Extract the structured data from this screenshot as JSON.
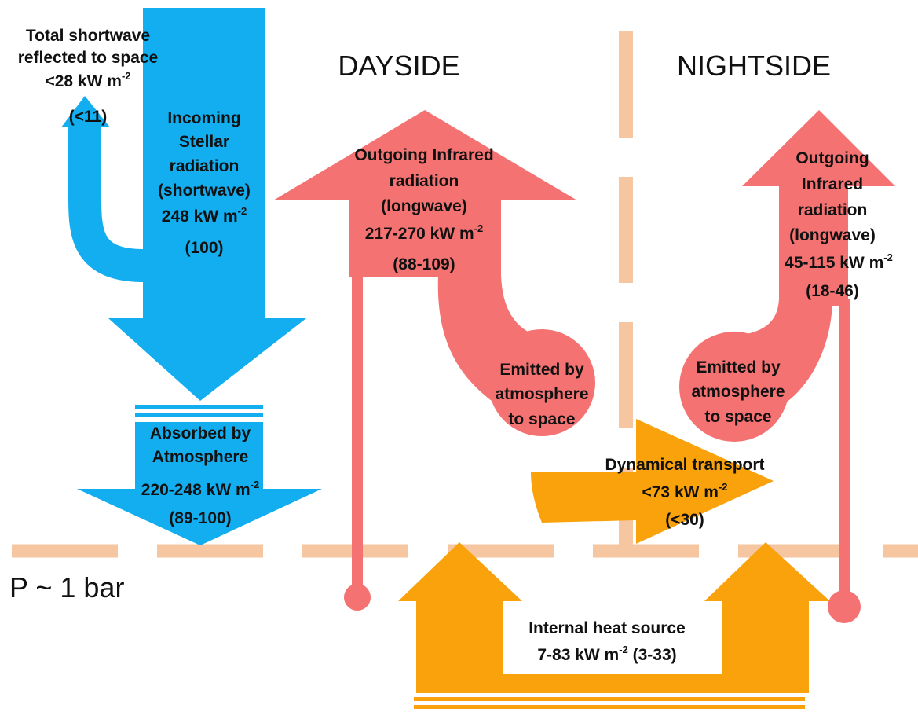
{
  "headers": {
    "dayside": "DAYSIDE",
    "nightside": "NIGHTSIDE",
    "pressure": "P ~ 1 bar"
  },
  "reflected": {
    "lines": [
      "Total shortwave",
      "reflected to space"
    ],
    "flux": "<28 kW m",
    "exp": "-2",
    "percent": "(<11)"
  },
  "incoming": {
    "lines": [
      "Incoming",
      "Stellar",
      "radiation",
      "(shortwave)"
    ],
    "flux": "248 kW m",
    "exp": "-2",
    "percent": "(100)"
  },
  "absorbed": {
    "lines": [
      "Absorbed by",
      "Atmosphere"
    ],
    "flux": "220-248 kW m",
    "exp": "-2",
    "percent": "(89-100)"
  },
  "dayside_outgoing": {
    "lines": [
      "Outgoing Infrared",
      "radiation",
      "(longwave)"
    ],
    "flux": "217-270 kW m",
    "exp": "-2",
    "percent": "(88-109)"
  },
  "nightside_outgoing": {
    "lines": [
      "Outgoing",
      "Infrared",
      "radiation",
      "(longwave)"
    ],
    "flux": "45-115 kW m",
    "exp": "-2",
    "percent": "(18-46)"
  },
  "emitted_dayside": {
    "lines": [
      "Emitted by",
      "atmosphere",
      "to space"
    ]
  },
  "emitted_nightside": {
    "lines": [
      "Emitted by",
      "atmosphere",
      "to space"
    ]
  },
  "dynamical": {
    "lines": [
      "Dynamical transport"
    ],
    "flux": "<73 kW m",
    "exp": "-2",
    "percent": "(<30)"
  },
  "internal": {
    "lines": [
      "Internal heat source"
    ],
    "flux": "7-83 kW m",
    "exp": "-2",
    "percent": " (3-33)"
  }
}
